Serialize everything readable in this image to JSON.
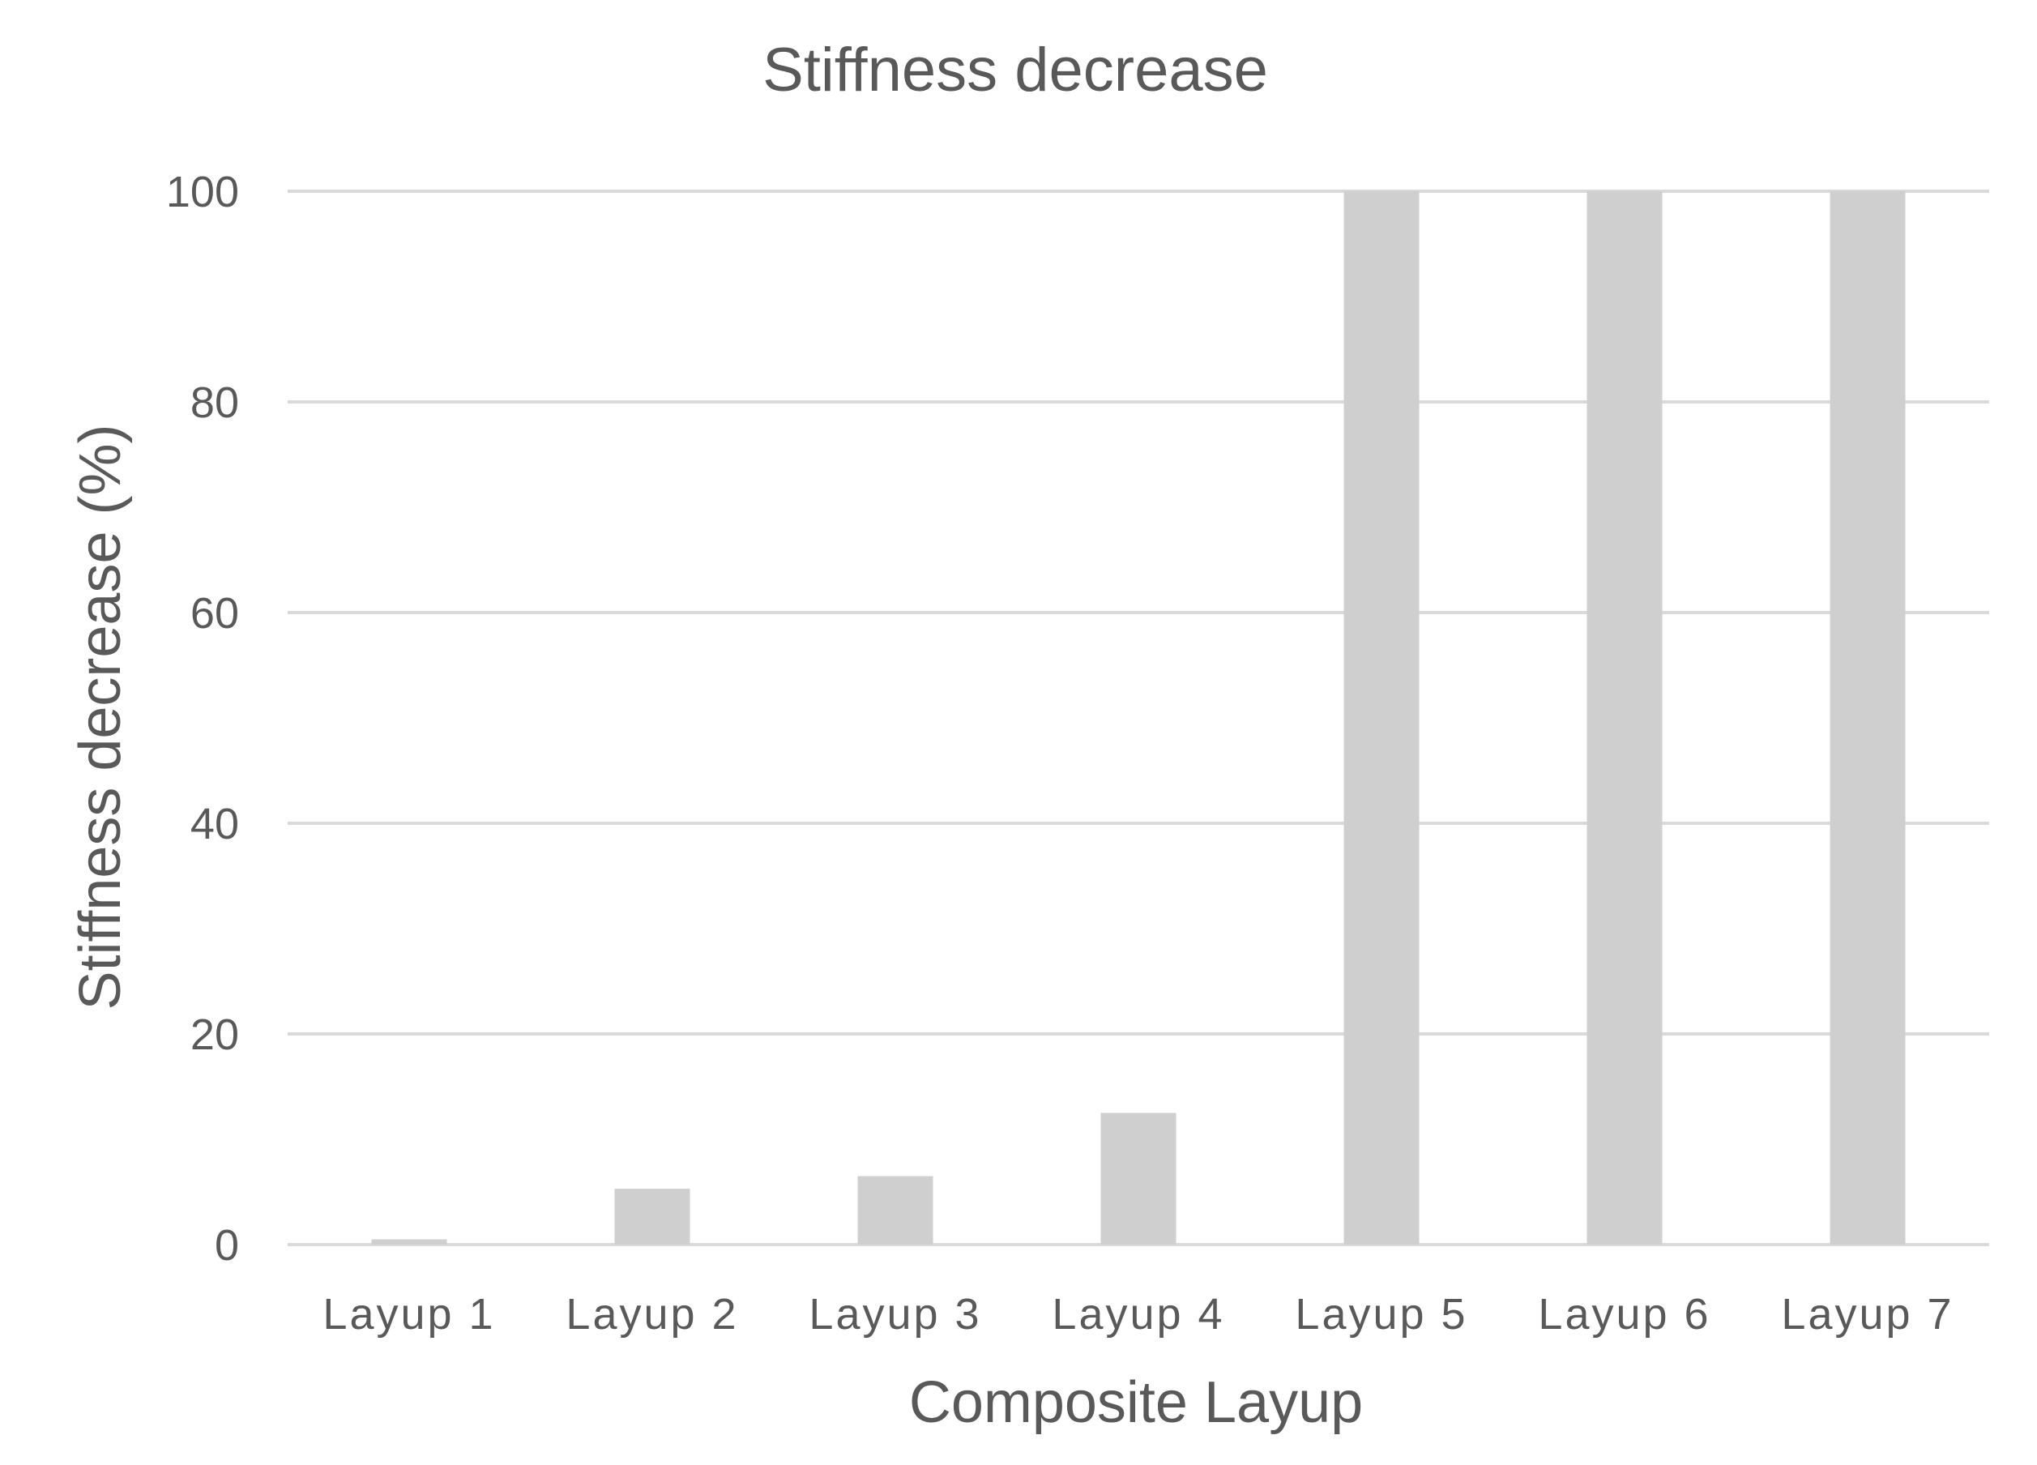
{
  "chart_data": {
    "type": "bar",
    "title": "Stiffness decrease",
    "xlabel": "Composite Layup",
    "ylabel": "Stiffness decrease (%)",
    "categories": [
      "Layup 1",
      "Layup 2",
      "Layup 3",
      "Layup 4",
      "Layup 5",
      "Layup 6",
      "Layup 7"
    ],
    "values": [
      0.5,
      5.3,
      6.5,
      12.5,
      100,
      100,
      100
    ],
    "ylim": [
      0,
      100
    ],
    "yticks": [
      0,
      20,
      40,
      60,
      80,
      100
    ],
    "grid": true,
    "legend": "none",
    "colors": {
      "bar": "#d0cfd0",
      "grid": "#d9d9d9",
      "text": "#595959"
    }
  }
}
